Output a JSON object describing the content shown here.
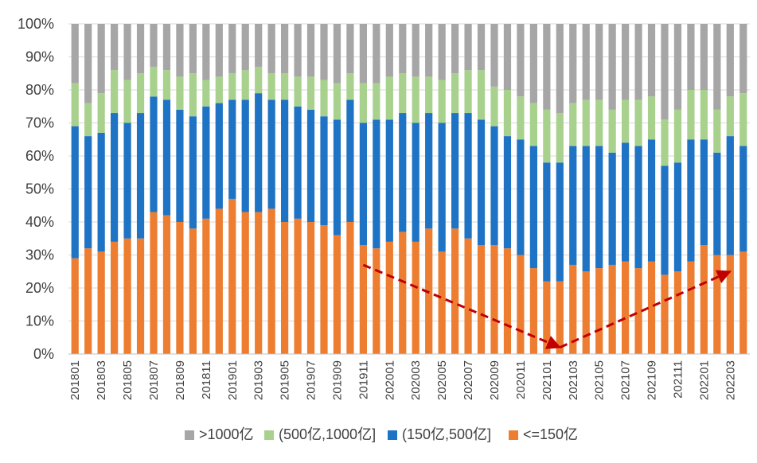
{
  "chart_data": {
    "type": "bar",
    "stacked": true,
    "title": "",
    "xlabel": "",
    "ylabel": "",
    "ylim": [
      0,
      100
    ],
    "y_ticks": [
      "0%",
      "10%",
      "20%",
      "30%",
      "40%",
      "50%",
      "60%",
      "70%",
      "80%",
      "90%",
      "100%"
    ],
    "categories": [
      "201801",
      "201802",
      "201803",
      "201804",
      "201805",
      "201806",
      "201807",
      "201808",
      "201809",
      "201810",
      "201811",
      "201812",
      "201901",
      "201902",
      "201903",
      "201904",
      "201905",
      "201906",
      "201907",
      "201908",
      "201909",
      "201910",
      "201911",
      "201912",
      "202001",
      "202002",
      "202003",
      "202004",
      "202005",
      "202006",
      "202007",
      "202008",
      "202009",
      "202010",
      "202011",
      "202012",
      "202101",
      "202102",
      "202103",
      "202104",
      "202105",
      "202106",
      "202107",
      "202108",
      "202109",
      "202110",
      "202111",
      "202112",
      "202201",
      "202202",
      "202203",
      "202204"
    ],
    "x_tick_labels": [
      "201801",
      "201803",
      "201805",
      "201807",
      "201809",
      "201811",
      "201901",
      "201903",
      "201905",
      "201907",
      "201909",
      "201911",
      "202001",
      "202003",
      "202005",
      "202007",
      "202009",
      "202011",
      "202101",
      "202103",
      "202105",
      "202107",
      "202109",
      "202111",
      "202201",
      "202203"
    ],
    "series": [
      {
        "name": "<=150亿",
        "color": "#ed7d31",
        "values": [
          29,
          32,
          31,
          34,
          35,
          35,
          43,
          42,
          40,
          38,
          41,
          44,
          47,
          43,
          43,
          44,
          40,
          41,
          40,
          39,
          36,
          40,
          33,
          32,
          34,
          37,
          34,
          38,
          31,
          38,
          35,
          33,
          33,
          32,
          30,
          26,
          22,
          22,
          27,
          25,
          26,
          27,
          28,
          26,
          28,
          24,
          25,
          28,
          33,
          30,
          30,
          31
        ]
      },
      {
        "name": "(150亿,500亿]",
        "color": "#1f73c4",
        "values": [
          40,
          34,
          36,
          39,
          35,
          38,
          35,
          35,
          34,
          34,
          34,
          32,
          30,
          34,
          36,
          33,
          37,
          34,
          34,
          33,
          35,
          37,
          37,
          39,
          37,
          36,
          36,
          35,
          39,
          35,
          38,
          38,
          36,
          34,
          35,
          37,
          36,
          36,
          36,
          38,
          37,
          34,
          36,
          37,
          37,
          33,
          33,
          37,
          32,
          31,
          36,
          32
        ]
      },
      {
        "name": "(500亿,1000亿]",
        "color": "#a9d18e",
        "values": [
          13,
          10,
          12,
          13,
          13,
          12,
          9,
          9,
          10,
          13,
          8,
          8,
          8,
          9,
          8,
          8,
          8,
          9,
          10,
          11,
          11,
          8,
          12,
          11,
          13,
          12,
          14,
          11,
          13,
          12,
          13,
          15,
          12,
          14,
          13,
          13,
          16,
          15,
          13,
          14,
          14,
          13,
          13,
          14,
          13,
          14,
          16,
          15,
          15,
          13,
          12,
          16
        ]
      },
      {
        "name": ">1000亿",
        "color": "#a6a6a6",
        "values": [
          18,
          24,
          21,
          14,
          17,
          15,
          13,
          14,
          16,
          15,
          17,
          16,
          15,
          14,
          13,
          15,
          15,
          16,
          16,
          17,
          18,
          15,
          18,
          18,
          16,
          15,
          16,
          16,
          17,
          15,
          14,
          14,
          19,
          20,
          22,
          24,
          26,
          27,
          24,
          23,
          23,
          26,
          23,
          23,
          22,
          29,
          26,
          20,
          20,
          26,
          22,
          21
        ]
      }
    ],
    "legend": {
      "placement": "bottom",
      "order": [
        ">1000亿",
        "(500亿,1000亿]",
        "(150亿,500亿]",
        "<=150亿"
      ]
    },
    "annotations": [
      {
        "type": "arrow",
        "style": "dashed",
        "color": "#c00000",
        "from": {
          "category": "201911",
          "value": 27
        },
        "to": {
          "category": "202102",
          "value": 2
        }
      },
      {
        "type": "arrow",
        "style": "dashed",
        "color": "#c00000",
        "from": {
          "category": "202102",
          "value": 2
        },
        "to": {
          "category": "202203",
          "value": 25
        }
      }
    ]
  }
}
